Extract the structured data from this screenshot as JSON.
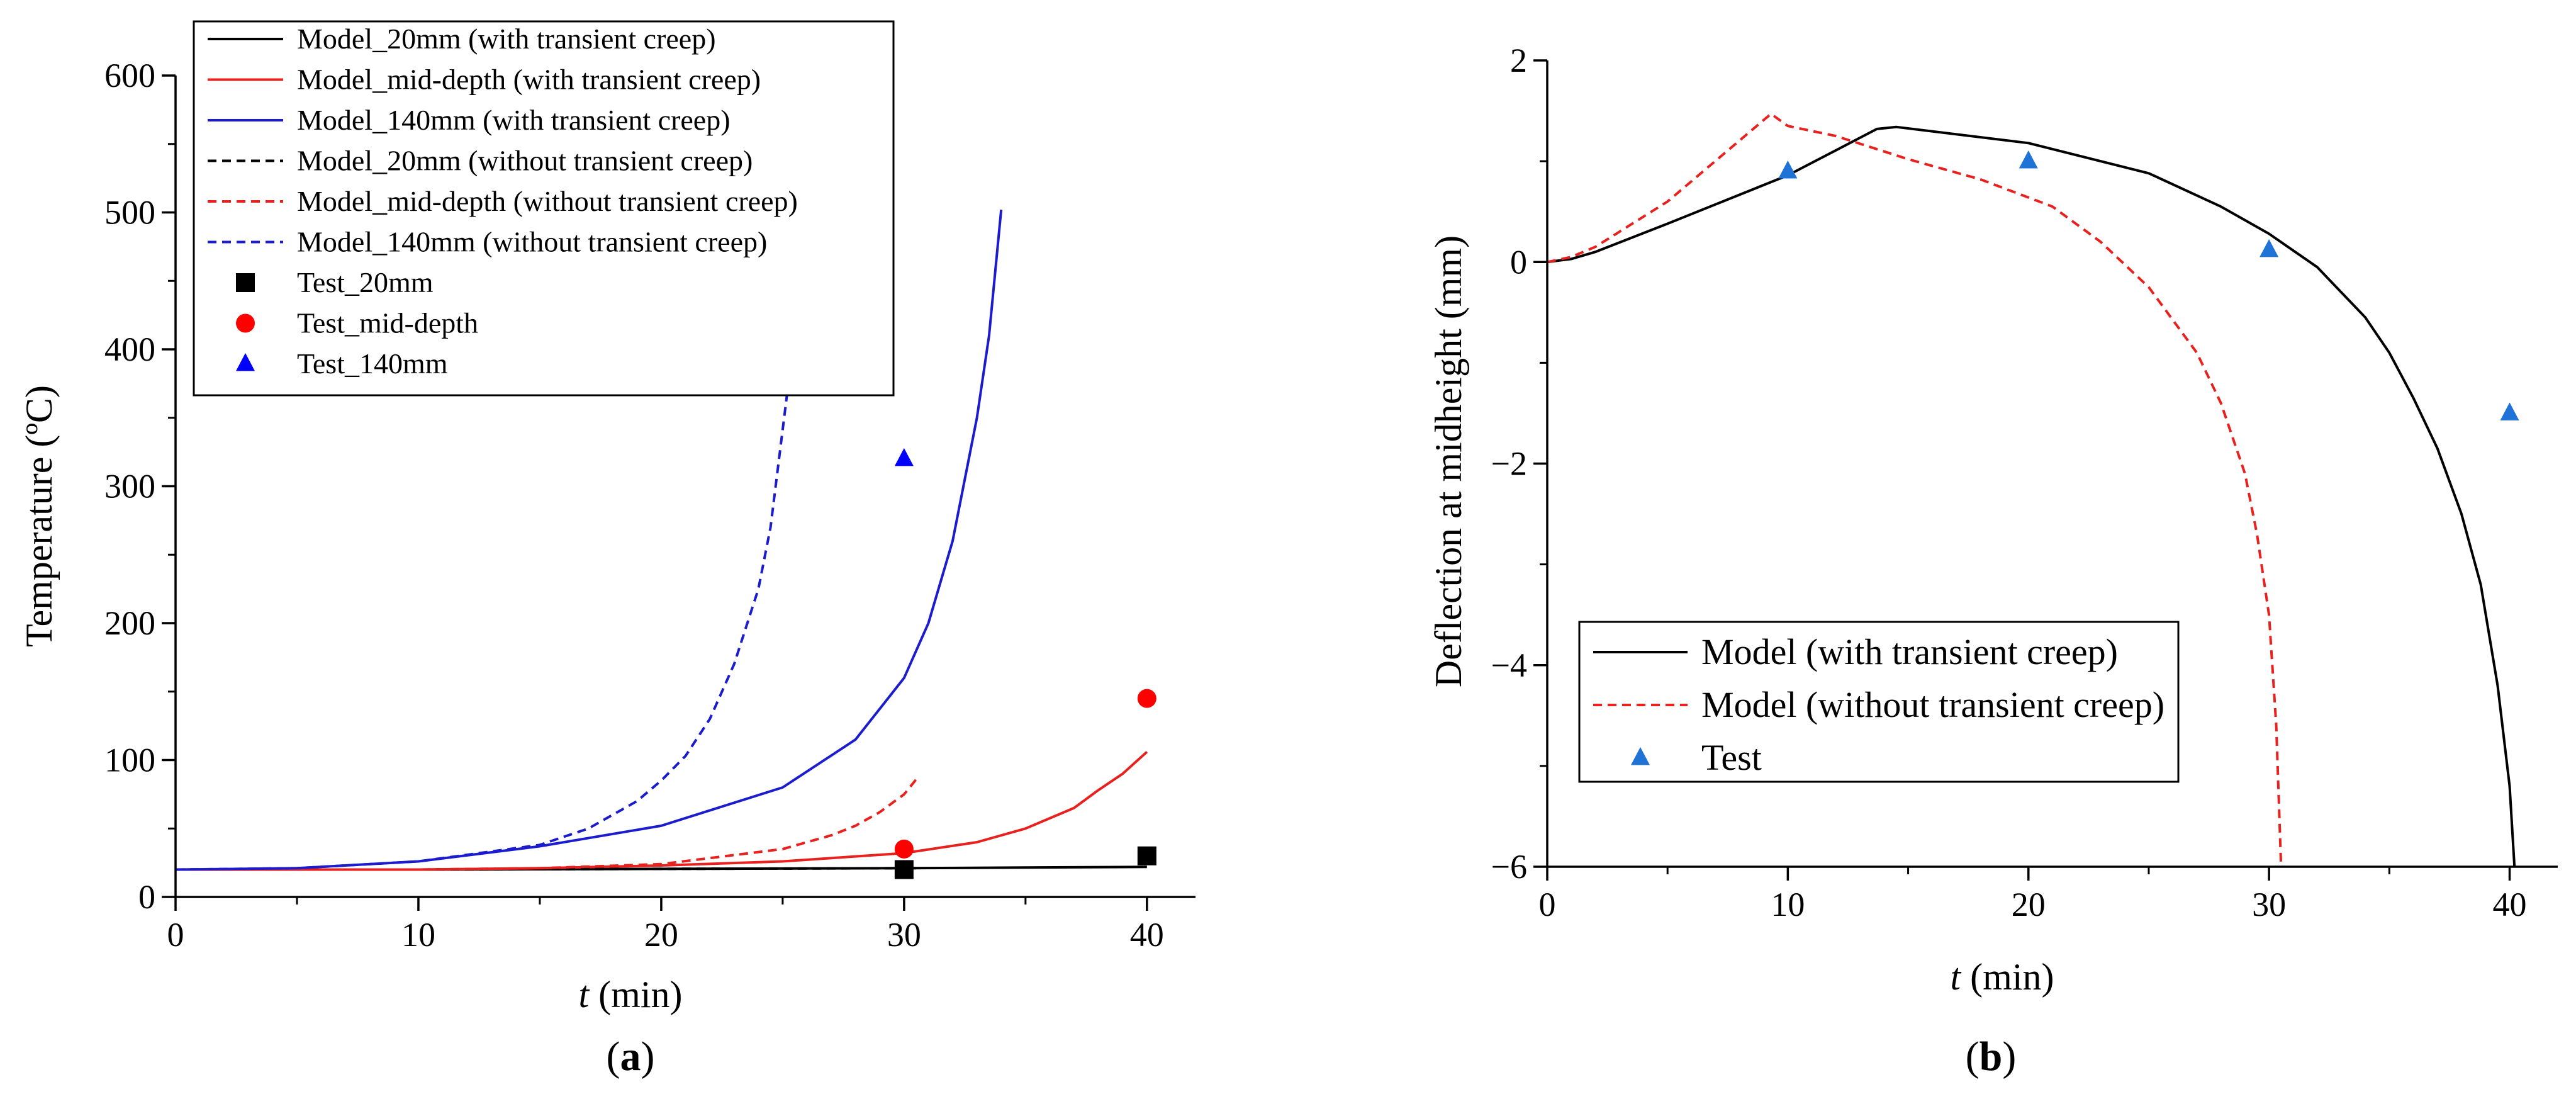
{
  "chart_data": [
    {
      "panel": "(a)",
      "panel_label_open": "(",
      "panel_label_letter": "a",
      "panel_label_close": ")",
      "type": "line",
      "title": "",
      "xlabel_italic": "t",
      "xlabel_unit": " (min)",
      "ylabel": "Temperature (ºC)",
      "xlim": [
        0,
        42
      ],
      "ylim": [
        0,
        600
      ],
      "xticks": [
        0,
        10,
        20,
        30,
        40
      ],
      "yticks": [
        0,
        100,
        200,
        300,
        400,
        500,
        600
      ],
      "legend_position": "top-left",
      "series": [
        {
          "name": "Model_20mm (with transient creep)",
          "kind": "line",
          "dash": "solid",
          "color": "#000000",
          "x": [
            0,
            10,
            20,
            30,
            40
          ],
          "y": [
            20,
            20,
            20.5,
            21,
            22
          ]
        },
        {
          "name": "Model_mid-depth (with transient creep)",
          "kind": "line",
          "dash": "solid",
          "color": "#e8211e",
          "x": [
            0,
            10,
            15,
            20,
            25,
            30,
            33,
            35,
            37,
            38,
            39,
            40
          ],
          "y": [
            20,
            20,
            21,
            23,
            26,
            32,
            40,
            50,
            65,
            78,
            90,
            106
          ]
        },
        {
          "name": "Model_140mm (with transient creep)",
          "kind": "line",
          "dash": "solid",
          "color": "#1c1ccf",
          "x": [
            0,
            5,
            10,
            15,
            20,
            25,
            28,
            30,
            31,
            32,
            33,
            33.5,
            34
          ],
          "y": [
            20,
            21,
            26,
            37,
            52,
            80,
            115,
            160,
            200,
            260,
            350,
            410,
            502
          ]
        },
        {
          "name": "Model_20mm (without transient creep)",
          "kind": "line",
          "dash": "dashed",
          "color": "#000000",
          "x": [
            0,
            10,
            20,
            30.5
          ],
          "y": [
            20,
            20,
            20.5,
            21
          ]
        },
        {
          "name": "Model_mid-depth (without transient creep)",
          "kind": "line",
          "dash": "dashed",
          "color": "#e8211e",
          "x": [
            0,
            10,
            15,
            20,
            25,
            27,
            28,
            29,
            30,
            30.5
          ],
          "y": [
            20,
            20,
            21,
            24,
            35,
            45,
            52,
            62,
            75,
            86
          ]
        },
        {
          "name": "Model_140mm (without transient creep)",
          "kind": "line",
          "dash": "dashed",
          "color": "#1c1ccf",
          "x": [
            0,
            5,
            10,
            15,
            17,
            19,
            20,
            21,
            22,
            23,
            24,
            24.5,
            25.2
          ],
          "y": [
            20,
            21,
            26,
            38,
            50,
            70,
            85,
            103,
            130,
            170,
            225,
            270,
            370
          ]
        },
        {
          "name": "Test_20mm",
          "kind": "marker",
          "marker": "square",
          "color": "#000000",
          "x": [
            30,
            40
          ],
          "y": [
            20,
            30
          ]
        },
        {
          "name": "Test_mid-depth",
          "kind": "marker",
          "marker": "circle",
          "color": "#ff0000",
          "x": [
            30,
            40
          ],
          "y": [
            35,
            145
          ]
        },
        {
          "name": "Test_140mm",
          "kind": "marker",
          "marker": "triangle",
          "color": "#0000ff",
          "x": [
            30
          ],
          "y": [
            320
          ]
        }
      ]
    },
    {
      "panel": "(b)",
      "panel_label_open": "(",
      "panel_label_letter": "b",
      "panel_label_close": ")",
      "type": "line",
      "title": "",
      "xlabel_italic": "t",
      "xlabel_unit": " (min)",
      "ylabel": "Deflection at midheight (mm)",
      "xlim": [
        0,
        42
      ],
      "ylim": [
        -6,
        2
      ],
      "xticks": [
        0,
        10,
        20,
        30,
        40
      ],
      "yticks": [
        -6,
        -4,
        -2,
        0,
        2
      ],
      "legend_position": "bottom-left",
      "series": [
        {
          "name": "Model (with transient creep)",
          "kind": "line",
          "dash": "solid",
          "color": "#000000",
          "x": [
            0,
            1,
            2,
            5,
            10,
            13.7,
            14.5,
            20,
            25,
            28,
            30,
            32,
            34,
            35,
            36,
            37,
            38,
            38.8,
            39.5,
            40,
            40.2
          ],
          "y": [
            0,
            0.03,
            0.1,
            0.38,
            0.86,
            1.32,
            1.34,
            1.18,
            0.88,
            0.55,
            0.28,
            -0.05,
            -0.55,
            -0.9,
            -1.35,
            -1.85,
            -2.5,
            -3.2,
            -4.2,
            -5.2,
            -6
          ]
        },
        {
          "name": "Model (without transient creep)",
          "kind": "line",
          "dash": "dashed",
          "color": "#e8211e",
          "x": [
            0,
            1,
            2,
            5,
            9.3,
            10,
            12,
            15,
            18,
            21,
            23,
            25,
            27,
            28,
            29,
            29.5,
            30,
            30.3,
            30.5
          ],
          "y": [
            0,
            0.05,
            0.15,
            0.6,
            1.47,
            1.35,
            1.25,
            1.02,
            0.82,
            0.55,
            0.2,
            -0.25,
            -0.9,
            -1.4,
            -2.1,
            -2.7,
            -3.5,
            -4.6,
            -6
          ]
        },
        {
          "name": "Test",
          "kind": "marker",
          "marker": "triangle",
          "color": "#1f72d6",
          "x": [
            10,
            20,
            30,
            40
          ],
          "y": [
            0.9,
            1.0,
            0.12,
            -1.5
          ]
        }
      ]
    }
  ]
}
